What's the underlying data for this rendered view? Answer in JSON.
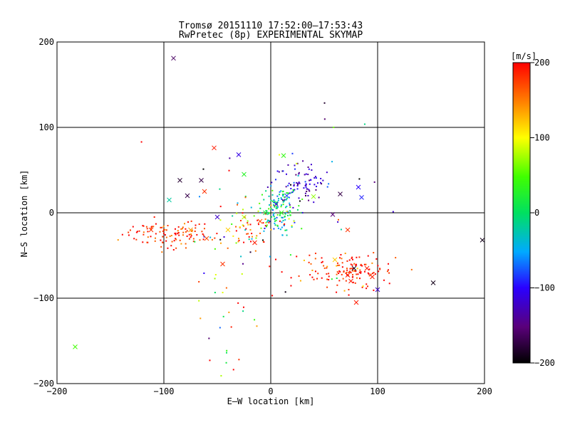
{
  "chart_data": {
    "type": "scatter",
    "title": "Tromsø 20151110 17:52:00–17:53:43",
    "subtitle": "RwPretec (8p) EXPERIMENTAL SKYMAP",
    "xlabel": "E–W location [km]",
    "ylabel": "N–S location [km]",
    "xlim": [
      -200,
      200
    ],
    "ylim": [
      -200,
      200
    ],
    "xticks": [
      -200,
      -100,
      0,
      100,
      200
    ],
    "yticks": [
      -200,
      -100,
      0,
      100,
      200
    ],
    "xtick_labels": [
      "−200",
      "−100",
      "0",
      "100",
      "200"
    ],
    "ytick_labels": [
      "−200",
      "−100",
      "0",
      "100",
      "200"
    ],
    "grid": true,
    "colorbar": {
      "unit": "[m/s]",
      "range": [
        -200,
        200
      ],
      "ticks": [
        200,
        100,
        0,
        -100,
        -200
      ],
      "tick_labels": [
        "200",
        "100",
        "0",
        "−100",
        "−200"
      ]
    },
    "clusters": [
      {
        "cx": -95,
        "cy": -25,
        "sx": 22,
        "sy": 8,
        "n": 110,
        "v": 185,
        "dv": 25
      },
      {
        "cx": 80,
        "cy": -70,
        "sx": 18,
        "sy": 10,
        "n": 100,
        "v": 190,
        "dv": 20
      },
      {
        "cx": 50,
        "cy": -62,
        "sx": 25,
        "sy": 12,
        "n": 40,
        "v": 180,
        "dv": 40
      },
      {
        "cx": 5,
        "cy": 5,
        "sx": 10,
        "sy": 14,
        "n": 140,
        "v": -10,
        "dv": 45
      },
      {
        "cx": 30,
        "cy": 35,
        "sx": 14,
        "sy": 12,
        "n": 80,
        "v": -120,
        "dv": 30
      },
      {
        "cx": -20,
        "cy": -15,
        "sx": 14,
        "sy": 14,
        "n": 50,
        "v": 140,
        "dv": 60
      },
      {
        "cx": -40,
        "cy": -100,
        "sx": 14,
        "sy": 50,
        "n": 40,
        "v": 40,
        "dv": 120
      },
      {
        "cx": 0,
        "cy": 0,
        "sx": 60,
        "sy": 60,
        "n": 40,
        "v": 0,
        "dv": 200
      }
    ],
    "crosses": [
      [
        -91,
        181,
        -160
      ],
      [
        -53,
        76,
        190
      ],
      [
        -30,
        68,
        -110
      ],
      [
        12,
        67,
        40
      ],
      [
        -25,
        45,
        30
      ],
      [
        -85,
        38,
        -180
      ],
      [
        -65,
        38,
        -170
      ],
      [
        -62,
        25,
        180
      ],
      [
        -78,
        20,
        -170
      ],
      [
        -50,
        -5,
        -120
      ],
      [
        82,
        30,
        -100
      ],
      [
        85,
        18,
        -90
      ],
      [
        65,
        22,
        -170
      ],
      [
        40,
        19,
        70
      ],
      [
        58,
        -2,
        -150
      ],
      [
        72,
        -20,
        180
      ],
      [
        78,
        -65,
        -190
      ],
      [
        90,
        -65,
        190
      ],
      [
        75,
        -80,
        190
      ],
      [
        80,
        -105,
        190
      ],
      [
        100,
        -90,
        -120
      ],
      [
        152,
        -82,
        -190
      ],
      [
        198,
        -32,
        -190
      ],
      [
        -183,
        -157,
        50
      ],
      [
        -112,
        -20,
        180
      ],
      [
        -75,
        -20,
        140
      ],
      [
        -60,
        -30,
        170
      ],
      [
        -40,
        -20,
        120
      ],
      [
        -25,
        -5,
        80
      ],
      [
        -15,
        -35,
        190
      ],
      [
        -10,
        -10,
        170
      ],
      [
        5,
        10,
        -110
      ],
      [
        15,
        20,
        -80
      ],
      [
        -5,
        0,
        10
      ],
      [
        10,
        0,
        40
      ],
      [
        60,
        -55,
        120
      ],
      [
        95,
        -75,
        190
      ],
      [
        72,
        -73,
        190
      ],
      [
        -95,
        15,
        -20
      ],
      [
        -45,
        -60,
        180
      ]
    ]
  }
}
